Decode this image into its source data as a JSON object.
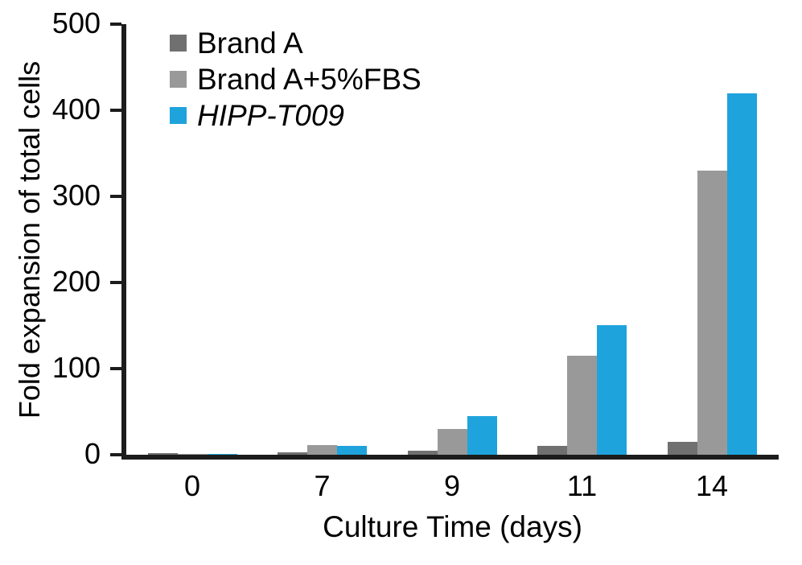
{
  "chart_data": {
    "type": "bar",
    "categories": [
      "0",
      "7",
      "9",
      "11",
      "14"
    ],
    "series": [
      {
        "name": "Brand A",
        "color": "#707070",
        "italic": false,
        "values": [
          2,
          3,
          5,
          10,
          15
        ]
      },
      {
        "name": "Brand A+5%FBS",
        "color": "#999999",
        "italic": false,
        "values": [
          1,
          11,
          30,
          115,
          330
        ]
      },
      {
        "name": "HIPP-T009",
        "color": "#1fa3dc",
        "italic": true,
        "values": [
          1,
          10,
          45,
          150,
          420
        ]
      }
    ],
    "title": "",
    "xlabel": "Culture Time (days)",
    "ylabel": "Fold expansion of total cells",
    "ylim": [
      0,
      500
    ],
    "yticks": [
      0,
      100,
      200,
      300,
      400,
      500
    ],
    "legend_position": "top-left",
    "grid": false,
    "axis_color": "#1c1c1c",
    "text_color": "#000000",
    "background": "#ffffff"
  }
}
